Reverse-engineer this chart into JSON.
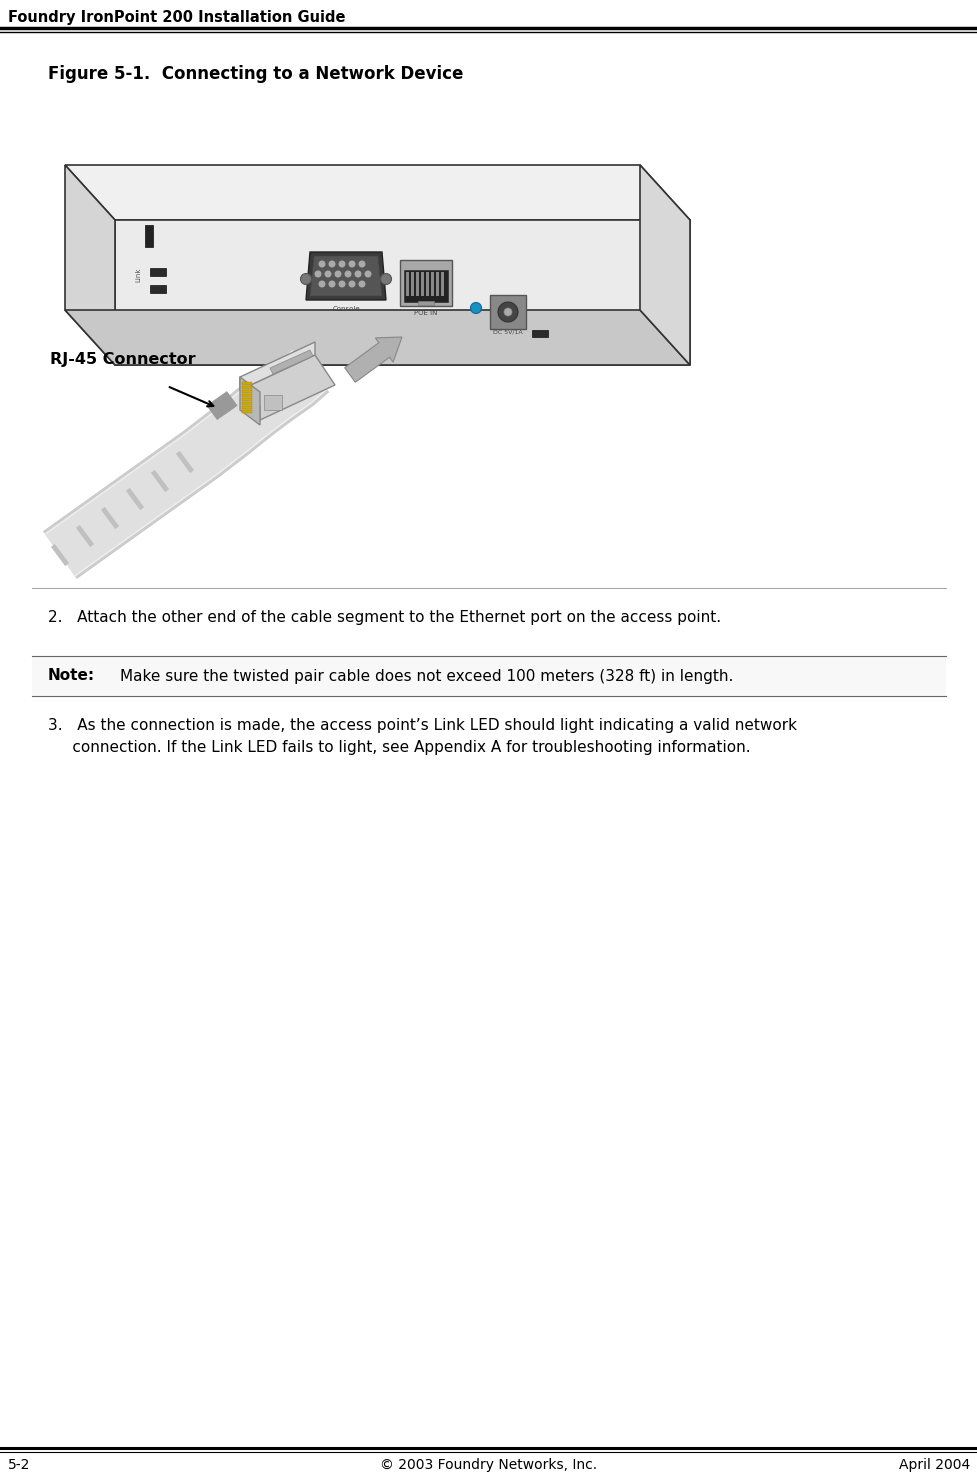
{
  "page_title": "Foundry IronPoint 200 Installation Guide",
  "figure_title": "Figure 5-1.  Connecting to a Network Device",
  "step2_text": "2.   Attach the other end of the cable segment to the Ethernet port on the access point.",
  "note_label": "Note:",
  "note_text": "Make sure the twisted pair cable does not exceed 100 meters (328 ft) in length.",
  "step3_line1": "3.   As the connection is made, the access point’s Link LED should light indicating a valid network",
  "step3_line2": "     connection. If the Link LED fails to light, see Appendix A for troubleshooting information.",
  "footer_left": "5-2",
  "footer_center": "© 2003 Foundry Networks, Inc.",
  "footer_right": "April 2004",
  "rj45_label": "RJ-45 Connector",
  "bg_color": "#ffffff",
  "text_color": "#000000"
}
